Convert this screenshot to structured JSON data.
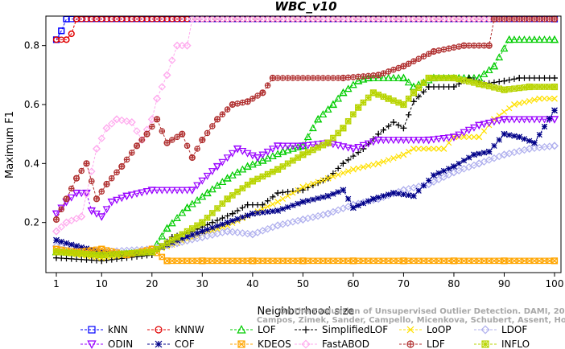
{
  "chart_data": {
    "type": "line",
    "title": "WBC_v10",
    "xlabel": "Neighborhood size",
    "ylabel": "Maximum F1",
    "xlim": [
      1,
      100
    ],
    "ylim": [
      0.03,
      0.9
    ],
    "xticks": [
      1,
      10,
      20,
      30,
      40,
      50,
      60,
      70,
      80,
      90,
      100
    ],
    "yticks": [
      0.2,
      0.4,
      0.6,
      0.8
    ],
    "legend_position": "bottom",
    "watermark": [
      "Campos, Zimek, Sander, Campello, Micenkova, Schubert, Assent, Houle",
      "On the Evaluation of Unsupervised Outlier Detection. DAMI, 2015."
    ],
    "series": [
      {
        "name": "kNN",
        "color": "#0000ff",
        "marker": "square",
        "points": [
          [
            1,
            0.82
          ],
          [
            2,
            0.85
          ],
          [
            3,
            0.89
          ],
          [
            100,
            0.89
          ]
        ]
      },
      {
        "name": "kNNW",
        "color": "#e00000",
        "marker": "circle",
        "points": [
          [
            1,
            0.82
          ],
          [
            3,
            0.82
          ],
          [
            4,
            0.84
          ],
          [
            5,
            0.89
          ],
          [
            100,
            0.89
          ]
        ]
      },
      {
        "name": "LOF",
        "color": "#00cc00",
        "marker": "triangle-up",
        "points": [
          [
            1,
            0.1
          ],
          [
            10,
            0.09
          ],
          [
            20,
            0.1
          ],
          [
            23,
            0.18
          ],
          [
            27,
            0.25
          ],
          [
            31,
            0.3
          ],
          [
            35,
            0.35
          ],
          [
            39,
            0.39
          ],
          [
            42,
            0.41
          ],
          [
            46,
            0.44
          ],
          [
            50,
            0.46
          ],
          [
            53,
            0.55
          ],
          [
            56,
            0.6
          ],
          [
            58,
            0.64
          ],
          [
            61,
            0.68
          ],
          [
            63,
            0.69
          ],
          [
            70,
            0.69
          ],
          [
            72,
            0.66
          ],
          [
            76,
            0.69
          ],
          [
            85,
            0.69
          ],
          [
            88,
            0.73
          ],
          [
            91,
            0.82
          ],
          [
            100,
            0.82
          ]
        ]
      },
      {
        "name": "SimplifiedLOF",
        "color": "#000000",
        "marker": "plus",
        "points": [
          [
            1,
            0.08
          ],
          [
            10,
            0.07
          ],
          [
            20,
            0.09
          ],
          [
            24,
            0.15
          ],
          [
            28,
            0.17
          ],
          [
            32,
            0.2
          ],
          [
            36,
            0.23
          ],
          [
            39,
            0.26
          ],
          [
            42,
            0.26
          ],
          [
            45,
            0.3
          ],
          [
            50,
            0.31
          ],
          [
            55,
            0.35
          ],
          [
            58,
            0.4
          ],
          [
            62,
            0.45
          ],
          [
            65,
            0.5
          ],
          [
            68,
            0.54
          ],
          [
            70,
            0.52
          ],
          [
            72,
            0.61
          ],
          [
            75,
            0.66
          ],
          [
            80,
            0.66
          ],
          [
            83,
            0.69
          ],
          [
            86,
            0.67
          ],
          [
            90,
            0.68
          ],
          [
            93,
            0.69
          ],
          [
            100,
            0.69
          ]
        ]
      },
      {
        "name": "LoOP",
        "color": "#ffe000",
        "marker": "cross",
        "points": [
          [
            1,
            0.1
          ],
          [
            10,
            0.08
          ],
          [
            20,
            0.1
          ],
          [
            25,
            0.13
          ],
          [
            30,
            0.16
          ],
          [
            35,
            0.19
          ],
          [
            40,
            0.23
          ],
          [
            45,
            0.27
          ],
          [
            50,
            0.32
          ],
          [
            55,
            0.35
          ],
          [
            60,
            0.38
          ],
          [
            65,
            0.4
          ],
          [
            70,
            0.43
          ],
          [
            72,
            0.45
          ],
          [
            78,
            0.45
          ],
          [
            80,
            0.49
          ],
          [
            85,
            0.49
          ],
          [
            88,
            0.55
          ],
          [
            92,
            0.6
          ],
          [
            97,
            0.62
          ],
          [
            100,
            0.62
          ]
        ]
      },
      {
        "name": "LDOF",
        "color": "#b0b0ee",
        "marker": "diamond",
        "points": [
          [
            1,
            0.12
          ],
          [
            10,
            0.1
          ],
          [
            20,
            0.11
          ],
          [
            25,
            0.13
          ],
          [
            30,
            0.15
          ],
          [
            35,
            0.17
          ],
          [
            40,
            0.16
          ],
          [
            45,
            0.19
          ],
          [
            50,
            0.21
          ],
          [
            55,
            0.23
          ],
          [
            60,
            0.26
          ],
          [
            65,
            0.28
          ],
          [
            70,
            0.31
          ],
          [
            75,
            0.33
          ],
          [
            80,
            0.37
          ],
          [
            85,
            0.4
          ],
          [
            90,
            0.43
          ],
          [
            95,
            0.45
          ],
          [
            100,
            0.46
          ]
        ]
      },
      {
        "name": "ODIN",
        "color": "#9900ff",
        "marker": "triangle-down",
        "points": [
          [
            1,
            0.23
          ],
          [
            3,
            0.27
          ],
          [
            5,
            0.3
          ],
          [
            7,
            0.3
          ],
          [
            8,
            0.24
          ],
          [
            10,
            0.22
          ],
          [
            12,
            0.27
          ],
          [
            15,
            0.29
          ],
          [
            20,
            0.31
          ],
          [
            28,
            0.31
          ],
          [
            33,
            0.39
          ],
          [
            37,
            0.45
          ],
          [
            41,
            0.42
          ],
          [
            45,
            0.46
          ],
          [
            50,
            0.46
          ],
          [
            55,
            0.47
          ],
          [
            60,
            0.45
          ],
          [
            65,
            0.48
          ],
          [
            75,
            0.48
          ],
          [
            80,
            0.49
          ],
          [
            85,
            0.53
          ],
          [
            90,
            0.55
          ],
          [
            100,
            0.55
          ]
        ]
      },
      {
        "name": "COF",
        "color": "#000088",
        "marker": "asterisk",
        "points": [
          [
            1,
            0.14
          ],
          [
            5,
            0.12
          ],
          [
            10,
            0.1
          ],
          [
            15,
            0.09
          ],
          [
            20,
            0.1
          ],
          [
            25,
            0.14
          ],
          [
            30,
            0.17
          ],
          [
            35,
            0.2
          ],
          [
            40,
            0.23
          ],
          [
            45,
            0.24
          ],
          [
            50,
            0.27
          ],
          [
            55,
            0.29
          ],
          [
            58,
            0.31
          ],
          [
            60,
            0.25
          ],
          [
            64,
            0.28
          ],
          [
            68,
            0.3
          ],
          [
            72,
            0.29
          ],
          [
            76,
            0.36
          ],
          [
            80,
            0.39
          ],
          [
            84,
            0.43
          ],
          [
            87,
            0.44
          ],
          [
            90,
            0.5
          ],
          [
            93,
            0.49
          ],
          [
            96,
            0.47
          ],
          [
            100,
            0.58
          ]
        ]
      },
      {
        "name": "KDEOS",
        "color": "#ffa500",
        "marker": "square-x",
        "points": [
          [
            1,
            0.11
          ],
          [
            5,
            0.1
          ],
          [
            10,
            0.11
          ],
          [
            15,
            0.09
          ],
          [
            20,
            0.11
          ],
          [
            23,
            0.07
          ],
          [
            30,
            0.07
          ],
          [
            40,
            0.07
          ],
          [
            50,
            0.07
          ],
          [
            60,
            0.07
          ],
          [
            70,
            0.07
          ],
          [
            80,
            0.07
          ],
          [
            90,
            0.07
          ],
          [
            100,
            0.07
          ]
        ]
      },
      {
        "name": "FastABOD",
        "color": "#ffaaee",
        "marker": "diamond",
        "points": [
          [
            1,
            0.17
          ],
          [
            3,
            0.2
          ],
          [
            6,
            0.22
          ],
          [
            9,
            0.45
          ],
          [
            11,
            0.52
          ],
          [
            13,
            0.55
          ],
          [
            16,
            0.54
          ],
          [
            18,
            0.48
          ],
          [
            20,
            0.55
          ],
          [
            21,
            0.62
          ],
          [
            23,
            0.7
          ],
          [
            25,
            0.8
          ],
          [
            27,
            0.8
          ],
          [
            28,
            0.89
          ],
          [
            100,
            0.89
          ]
        ]
      },
      {
        "name": "LDF",
        "color": "#b03030",
        "marker": "circle-plus",
        "points": [
          [
            1,
            0.21
          ],
          [
            3,
            0.28
          ],
          [
            5,
            0.35
          ],
          [
            7,
            0.4
          ],
          [
            9,
            0.28
          ],
          [
            11,
            0.33
          ],
          [
            14,
            0.39
          ],
          [
            17,
            0.46
          ],
          [
            19,
            0.5
          ],
          [
            21,
            0.55
          ],
          [
            23,
            0.47
          ],
          [
            26,
            0.5
          ],
          [
            28,
            0.42
          ],
          [
            30,
            0.48
          ],
          [
            33,
            0.55
          ],
          [
            36,
            0.6
          ],
          [
            39,
            0.61
          ],
          [
            42,
            0.64
          ],
          [
            44,
            0.69
          ],
          [
            58,
            0.69
          ],
          [
            65,
            0.7
          ],
          [
            70,
            0.73
          ],
          [
            76,
            0.78
          ],
          [
            82,
            0.8
          ],
          [
            87,
            0.8
          ],
          [
            88,
            0.89
          ],
          [
            100,
            0.89
          ]
        ]
      },
      {
        "name": "INFLO",
        "color": "#b8d400",
        "marker": "square-star",
        "points": [
          [
            1,
            0.1
          ],
          [
            10,
            0.09
          ],
          [
            20,
            0.1
          ],
          [
            25,
            0.15
          ],
          [
            30,
            0.2
          ],
          [
            35,
            0.28
          ],
          [
            40,
            0.34
          ],
          [
            45,
            0.38
          ],
          [
            50,
            0.43
          ],
          [
            55,
            0.47
          ],
          [
            58,
            0.52
          ],
          [
            61,
            0.59
          ],
          [
            64,
            0.64
          ],
          [
            67,
            0.62
          ],
          [
            70,
            0.6
          ],
          [
            72,
            0.64
          ],
          [
            75,
            0.69
          ],
          [
            80,
            0.69
          ],
          [
            85,
            0.67
          ],
          [
            90,
            0.65
          ],
          [
            95,
            0.66
          ],
          [
            100,
            0.66
          ]
        ]
      }
    ]
  }
}
